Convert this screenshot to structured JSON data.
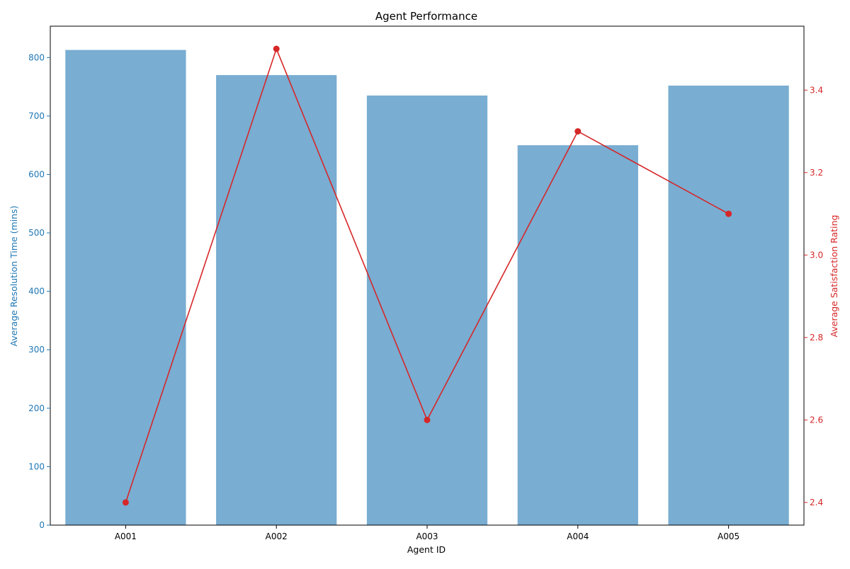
{
  "colors": {
    "bar": "#1f77b4",
    "line": "#d62728",
    "axis": "#000000",
    "left_axis_text": "#1f77b4",
    "right_axis_text": "#d62728"
  },
  "chart_data": {
    "type": "bar",
    "title": "Agent Performance",
    "xlabel": "Agent ID",
    "ylabel_left": "Average Resolution Time (mins)",
    "ylabel_right": "Average Satisfaction Rating",
    "categories": [
      "A001",
      "A002",
      "A003",
      "A004",
      "A005"
    ],
    "series": [
      {
        "type": "bar",
        "axis": "left",
        "values": [
          813,
          770,
          735,
          650,
          752
        ]
      },
      {
        "type": "line",
        "axis": "right",
        "marker": "circle",
        "values": [
          2.4,
          3.5,
          2.6,
          3.3,
          3.1
        ]
      }
    ],
    "ylim_left": [
      0,
      853.65
    ],
    "ylim_right": [
      2.345,
      3.555
    ],
    "yticks_left": [
      0,
      100,
      200,
      300,
      400,
      500,
      600,
      700,
      800
    ],
    "yticks_right": [
      2.4,
      2.6,
      2.8,
      3.0,
      3.2,
      3.4
    ],
    "ytick_labels_right": [
      "2.4",
      "2.6",
      "2.8",
      "3.0",
      "3.2",
      "3.4"
    ],
    "grid": false,
    "legend": "none"
  }
}
